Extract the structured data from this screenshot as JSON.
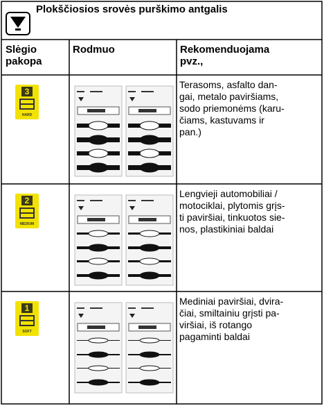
{
  "header": {
    "title": "Plokščiosios srovės purškimo antgalis"
  },
  "table": {
    "columns": [
      "Slėgio pakopa",
      "Rodmuo",
      "Rekomenduojama pvz.,"
    ],
    "rows": [
      {
        "level": "3",
        "level_label": "HARD",
        "description": [
          "Terasoms, asfalto dan-",
          "gai, metalo paviršiams,",
          "sodo priemonėms (karu-",
          "čiams, kastuvams ir",
          "pan.)"
        ]
      },
      {
        "level": "2",
        "level_label": "MEDIUM",
        "description": [
          "Lengvieji automobiliai /",
          "motociklai, plytomis grįs-",
          "ti paviršiai, tinkuotos sie-",
          "nos, plastikiniai baldai"
        ]
      },
      {
        "level": "1",
        "level_label": "SOFT",
        "description": [
          "Mediniai paviršiai, dvira-",
          "čiai, smiltainiu grįsti pa-",
          "viršiai, iš rotango",
          "pagaminti baldai"
        ]
      }
    ]
  }
}
